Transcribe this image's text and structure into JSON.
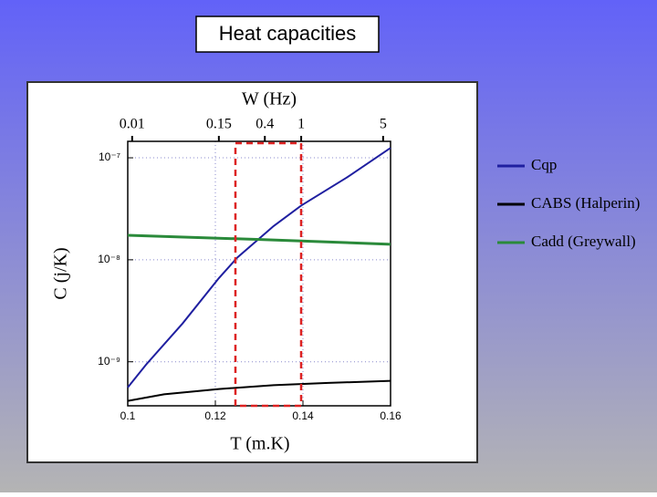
{
  "chart_data": {
    "type": "line",
    "title": "Heat capacities",
    "x_label": "T (m.K)",
    "y_label": "C (j/K)",
    "x2_label": "W (Hz)",
    "xlim": [
      0.1,
      0.16
    ],
    "xticks": [
      0.1,
      0.12,
      0.14,
      0.16
    ],
    "x2ticks": [
      {
        "value": 0.101,
        "label": "0.01"
      },
      {
        "value": 0.1208,
        "label": "0.15"
      },
      {
        "value": 0.1313,
        "label": "0.4"
      },
      {
        "value": 0.1396,
        "label": "1"
      },
      {
        "value": 0.1583,
        "label": "5"
      }
    ],
    "ylim": [
      3.7e-10,
      1.45e-07
    ],
    "log_y": true,
    "yticks": [
      {
        "value": 1e-07,
        "label": "10⁻⁷"
      },
      {
        "value": 1e-08,
        "label": "10⁻⁸"
      },
      {
        "value": 1e-09,
        "label": "10⁻⁹"
      }
    ],
    "grid": true,
    "series": [
      {
        "name": "Cqp",
        "color": "#1f1fa0",
        "x": [
          0.1,
          0.1042,
          0.1125,
          0.1208,
          0.125,
          0.1333,
          0.1396,
          0.15,
          0.16
        ],
        "values": [
          5.6e-10,
          9.4e-10,
          2.37e-09,
          6.6e-09,
          1.05e-08,
          2.14e-08,
          3.4e-08,
          6.4e-08,
          1.25e-07
        ]
      },
      {
        "name": "CABS (Halperin)",
        "color": "#000000",
        "x": [
          0.1,
          0.1083,
          0.1208,
          0.1333,
          0.1458,
          0.16
        ],
        "values": [
          4.13e-10,
          4.8e-10,
          5.4e-10,
          5.9e-10,
          6.2e-10,
          6.5e-10
        ]
      },
      {
        "name": "Cadd (Greywall)",
        "color": "#2a8a3a",
        "x": [
          0.1,
          0.1302,
          0.16
        ],
        "values": [
          1.74e-08,
          1.58e-08,
          1.42e-08
        ]
      }
    ]
  }
}
